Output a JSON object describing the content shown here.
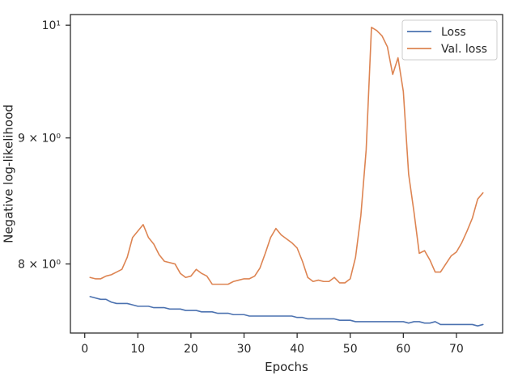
{
  "chart_data": {
    "type": "line",
    "xlabel": "Epochs",
    "ylabel": "Negative log-likelihood",
    "yscale": "log",
    "xlim": [
      -2.7,
      78.7
    ],
    "ylim": [
      7.5,
      10.1
    ],
    "grid": false,
    "legend_placement": "top-right",
    "x_ticks": [
      0,
      10,
      20,
      30,
      40,
      50,
      60,
      70
    ],
    "x_tick_labels": [
      "0",
      "10",
      "20",
      "30",
      "40",
      "50",
      "60",
      "70"
    ],
    "y_ticks": [
      8,
      9,
      10
    ],
    "y_tick_labels": [
      "8 × 10⁰",
      "9 × 10⁰",
      "10¹"
    ],
    "x": [
      1,
      2,
      3,
      4,
      5,
      6,
      7,
      8,
      9,
      10,
      11,
      12,
      13,
      14,
      15,
      16,
      17,
      18,
      19,
      20,
      21,
      22,
      23,
      24,
      25,
      26,
      27,
      28,
      29,
      30,
      31,
      32,
      33,
      34,
      35,
      36,
      37,
      38,
      39,
      40,
      41,
      42,
      43,
      44,
      45,
      46,
      47,
      48,
      49,
      50,
      51,
      52,
      53,
      54,
      55,
      56,
      57,
      58,
      59,
      60,
      61,
      62,
      63,
      64,
      65,
      66,
      67,
      68,
      69,
      70,
      71,
      72,
      73,
      74,
      75
    ],
    "series": [
      {
        "name": "Loss",
        "color": "#4c72b0",
        "values": [
          7.76,
          7.75,
          7.74,
          7.74,
          7.72,
          7.71,
          7.71,
          7.71,
          7.7,
          7.69,
          7.69,
          7.69,
          7.68,
          7.68,
          7.68,
          7.67,
          7.67,
          7.67,
          7.66,
          7.66,
          7.66,
          7.65,
          7.65,
          7.65,
          7.64,
          7.64,
          7.64,
          7.63,
          7.63,
          7.63,
          7.62,
          7.62,
          7.62,
          7.62,
          7.62,
          7.62,
          7.62,
          7.62,
          7.62,
          7.61,
          7.61,
          7.6,
          7.6,
          7.6,
          7.6,
          7.6,
          7.6,
          7.59,
          7.59,
          7.59,
          7.58,
          7.58,
          7.58,
          7.58,
          7.58,
          7.58,
          7.58,
          7.58,
          7.58,
          7.58,
          7.57,
          7.58,
          7.58,
          7.57,
          7.57,
          7.58,
          7.56,
          7.56,
          7.56,
          7.56,
          7.56,
          7.56,
          7.56,
          7.55,
          7.56
        ]
      },
      {
        "name": "Val. loss",
        "color": "#dd8452",
        "values": [
          7.9,
          7.89,
          7.89,
          7.91,
          7.92,
          7.94,
          7.96,
          8.05,
          8.2,
          8.25,
          8.3,
          8.2,
          8.15,
          8.07,
          8.02,
          8.01,
          8.0,
          7.93,
          7.9,
          7.91,
          7.96,
          7.93,
          7.91,
          7.85,
          7.85,
          7.85,
          7.85,
          7.87,
          7.88,
          7.89,
          7.89,
          7.91,
          7.97,
          8.08,
          8.2,
          8.27,
          8.22,
          8.19,
          8.16,
          8.12,
          8.02,
          7.9,
          7.87,
          7.88,
          7.87,
          7.87,
          7.9,
          7.86,
          7.86,
          7.89,
          8.05,
          8.37,
          8.9,
          9.98,
          9.95,
          9.9,
          9.8,
          9.55,
          9.7,
          9.4,
          8.7,
          8.4,
          8.08,
          8.1,
          8.03,
          7.94,
          7.94,
          8.0,
          8.06,
          8.09,
          8.16,
          8.25,
          8.35,
          8.5,
          8.55
        ]
      }
    ]
  }
}
